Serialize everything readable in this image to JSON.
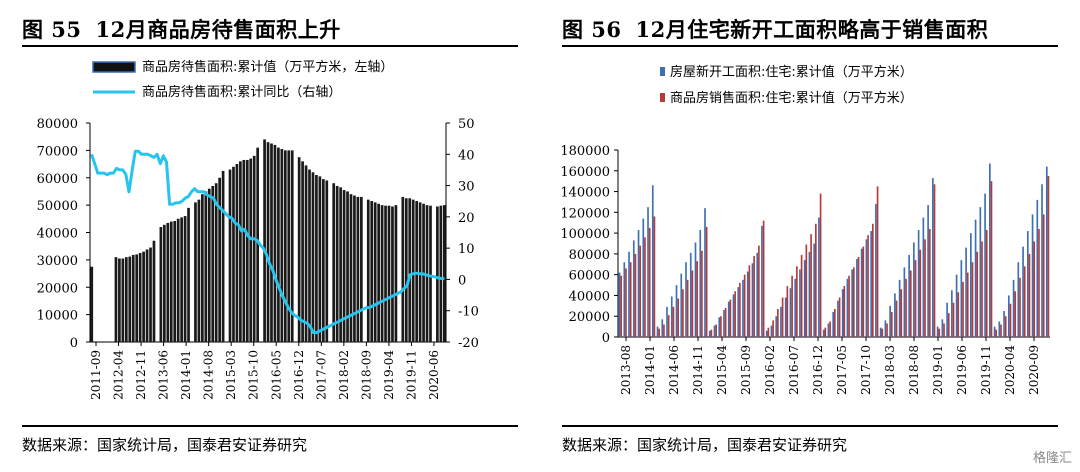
{
  "chart_data": [
    {
      "type": "bar+line",
      "figure_label": "图 55",
      "title": "12月商品房待售面积上升",
      "legend": [
        "商品房待售面积:累计值（万平方米，左轴）",
        "商品房待售面积:累计同比（右轴）"
      ],
      "x_tick_labels": [
        "2011-09",
        "2012-04",
        "2012-11",
        "2013-06",
        "2014-01",
        "2014-08",
        "2015-03",
        "2015-10",
        "2016-05",
        "2016-12",
        "2017-07",
        "2018-02",
        "2018-09",
        "2019-04",
        "2019-11",
        "2020-06"
      ],
      "y_left_ticks": [
        0,
        10000,
        20000,
        30000,
        40000,
        50000,
        60000,
        70000,
        80000
      ],
      "y_right_ticks": [
        -20,
        -10,
        0,
        10,
        20,
        30,
        40,
        50
      ],
      "ylim_left": [
        0,
        80000
      ],
      "ylim_right": [
        -20,
        50
      ],
      "bar_series": {
        "name": "商品房待售面积:累计值（万平方米，左轴）",
        "start": "2011-09",
        "values": [
          27500,
          null,
          null,
          null,
          null,
          null,
          null,
          31000,
          30500,
          30500,
          31000,
          31200,
          31800,
          32000,
          32500,
          33000,
          33800,
          34500,
          37000,
          null,
          42000,
          42800,
          43500,
          44000,
          44200,
          45000,
          45500,
          46000,
          49000,
          null,
          51000,
          52000,
          54000,
          55000,
          56000,
          57000,
          58000,
          60000,
          62500,
          null,
          63000,
          64000,
          65000,
          66000,
          66500,
          66500,
          67000,
          68000,
          71000,
          null,
          74000,
          73000,
          72500,
          72000,
          71000,
          70500,
          70000,
          70000,
          70000,
          null,
          67500,
          66000,
          64500,
          63000,
          62000,
          61000,
          60500,
          59500,
          59000,
          null,
          58000,
          57000,
          56500,
          55500,
          55000,
          54000,
          53500,
          53000,
          53000,
          null,
          52000,
          51500,
          51000,
          50500,
          50000,
          49800,
          49800,
          49500,
          50000,
          null,
          53000,
          52500,
          52500,
          52000,
          51500,
          51000,
          50500,
          50000,
          49800,
          null,
          49500,
          49800,
          50000
        ]
      },
      "line_series": {
        "name": "商品房待售面积:累计同比（右轴）",
        "start": "2011-09",
        "values": [
          40,
          37,
          34,
          34,
          34,
          33.5,
          34,
          34,
          35.5,
          35,
          35,
          33.5,
          28,
          35,
          41,
          41,
          40,
          40,
          40,
          39.5,
          39,
          40,
          37,
          39.5,
          37.5,
          24,
          24,
          24.5,
          24.5,
          25,
          26,
          26.5,
          28,
          29,
          28,
          28,
          28,
          27,
          26.5,
          26,
          24,
          23,
          22,
          21,
          20,
          19.5,
          18,
          17.5,
          15.5,
          16,
          14,
          13,
          13,
          12.5,
          11,
          10,
          8,
          5,
          3,
          0,
          -2.5,
          -5,
          -7,
          -9,
          -10.5,
          -11.5,
          -12,
          -13,
          -13.5,
          -14,
          -15,
          -17,
          -17,
          -16.5,
          -16,
          -15.5,
          -15,
          -14.5,
          -14,
          -13.5,
          -13,
          -12.5,
          -12,
          -11.5,
          -11,
          -10.5,
          -10,
          -9.5,
          -9,
          -9,
          -8.5,
          -8,
          -7.5,
          -7,
          -6.5,
          -6,
          -5.5,
          -5,
          -4.5,
          -4,
          -3,
          -2,
          1.5,
          1.8,
          2,
          1.8,
          1.8,
          1.5,
          1.2,
          1,
          0.8,
          0.5,
          0.3,
          0.2
        ]
      }
    },
    {
      "type": "bar",
      "figure_label": "图 56",
      "title": "12月住宅新开工面积略高于销售面积",
      "legend": [
        "房屋新开工面积:住宅:累计值（万平方米）",
        "商品房销售面积:住宅:累计值（万平方米）"
      ],
      "x_tick_labels": [
        "2013-08",
        "2014-01",
        "2014-06",
        "2014-11",
        "2015-04",
        "2015-09",
        "2016-02",
        "2016-07",
        "2016-12",
        "2017-05",
        "2017-10",
        "2018-03",
        "2018-08",
        "2019-01",
        "2019-06",
        "2019-11",
        "2020-04",
        "2020-09"
      ],
      "y_ticks": [
        0,
        20000,
        40000,
        60000,
        80000,
        100000,
        120000,
        140000,
        160000,
        180000
      ],
      "ylim": [
        0,
        180000
      ],
      "colors": {
        "new_starts": "#3e6fb0",
        "sales": "#b53a3a"
      },
      "years": [
        {
          "new_starts": [
            62000,
            72000,
            82000,
            93000,
            103000,
            114000,
            125000,
            146000
          ],
          "sales": [
            59000,
            66000,
            72000,
            80000,
            88000,
            96000,
            105000,
            116000
          ]
        },
        {
          "new_starts": [
            10000,
            17000,
            29000,
            39000,
            50000,
            61000,
            72000,
            81000,
            91000,
            103000,
            124000
          ],
          "sales": [
            8000,
            12000,
            21000,
            29000,
            37000,
            46000,
            55000,
            64000,
            73000,
            83000,
            106000
          ]
        },
        {
          "new_starts": [
            6000,
            11000,
            19000,
            26000,
            34000,
            41000,
            48000,
            55000,
            63000,
            71000,
            81000,
            107000
          ],
          "sales": [
            7000,
            12000,
            20000,
            28000,
            36000,
            44000,
            52000,
            60000,
            69000,
            78000,
            88000,
            112000
          ]
        },
        {
          "new_starts": [
            6000,
            11000,
            20000,
            29000,
            38000,
            47000,
            56000,
            65000,
            74000,
            82000,
            90000,
            115000
          ],
          "sales": [
            9000,
            16000,
            27000,
            38000,
            49000,
            59000,
            68000,
            79000,
            89000,
            99000,
            109000,
            138000
          ]
        },
        {
          "new_starts": [
            7000,
            13000,
            24000,
            35000,
            46000,
            56000,
            65000,
            75000,
            85000,
            94000,
            102000,
            128000
          ],
          "sales": [
            9000,
            15000,
            27000,
            38000,
            49000,
            59000,
            67000,
            77000,
            87000,
            98000,
            109000,
            145000
          ]
        },
        {
          "new_starts": [
            9000,
            16000,
            30000,
            42000,
            55000,
            67000,
            79000,
            91000,
            103000,
            115000,
            127000,
            153000
          ],
          "sales": [
            8000,
            13000,
            24000,
            35000,
            46000,
            56000,
            64000,
            74000,
            84000,
            94000,
            104000,
            147000
          ]
        },
        {
          "new_starts": [
            10000,
            17000,
            33000,
            45000,
            60000,
            74000,
            86000,
            100000,
            113000,
            125000,
            138000,
            167000
          ],
          "sales": [
            8000,
            13000,
            23000,
            33000,
            43000,
            53000,
            62000,
            72000,
            82000,
            92000,
            103000,
            150000
          ]
        },
        {
          "new_starts": [
            10000,
            15000,
            25000,
            40000,
            55000,
            72000,
            87000,
            102000,
            118000,
            132000,
            147000,
            164000
          ],
          "sales": [
            7000,
            12000,
            20000,
            32000,
            44000,
            57000,
            68000,
            80000,
            92000,
            104000,
            118000,
            155000
          ]
        }
      ]
    }
  ],
  "source_left": "数据来源：国家统计局，国泰君安证券研究",
  "source_right": "数据来源：国家统计局，国泰君安证券研究",
  "watermark": "格隆汇"
}
